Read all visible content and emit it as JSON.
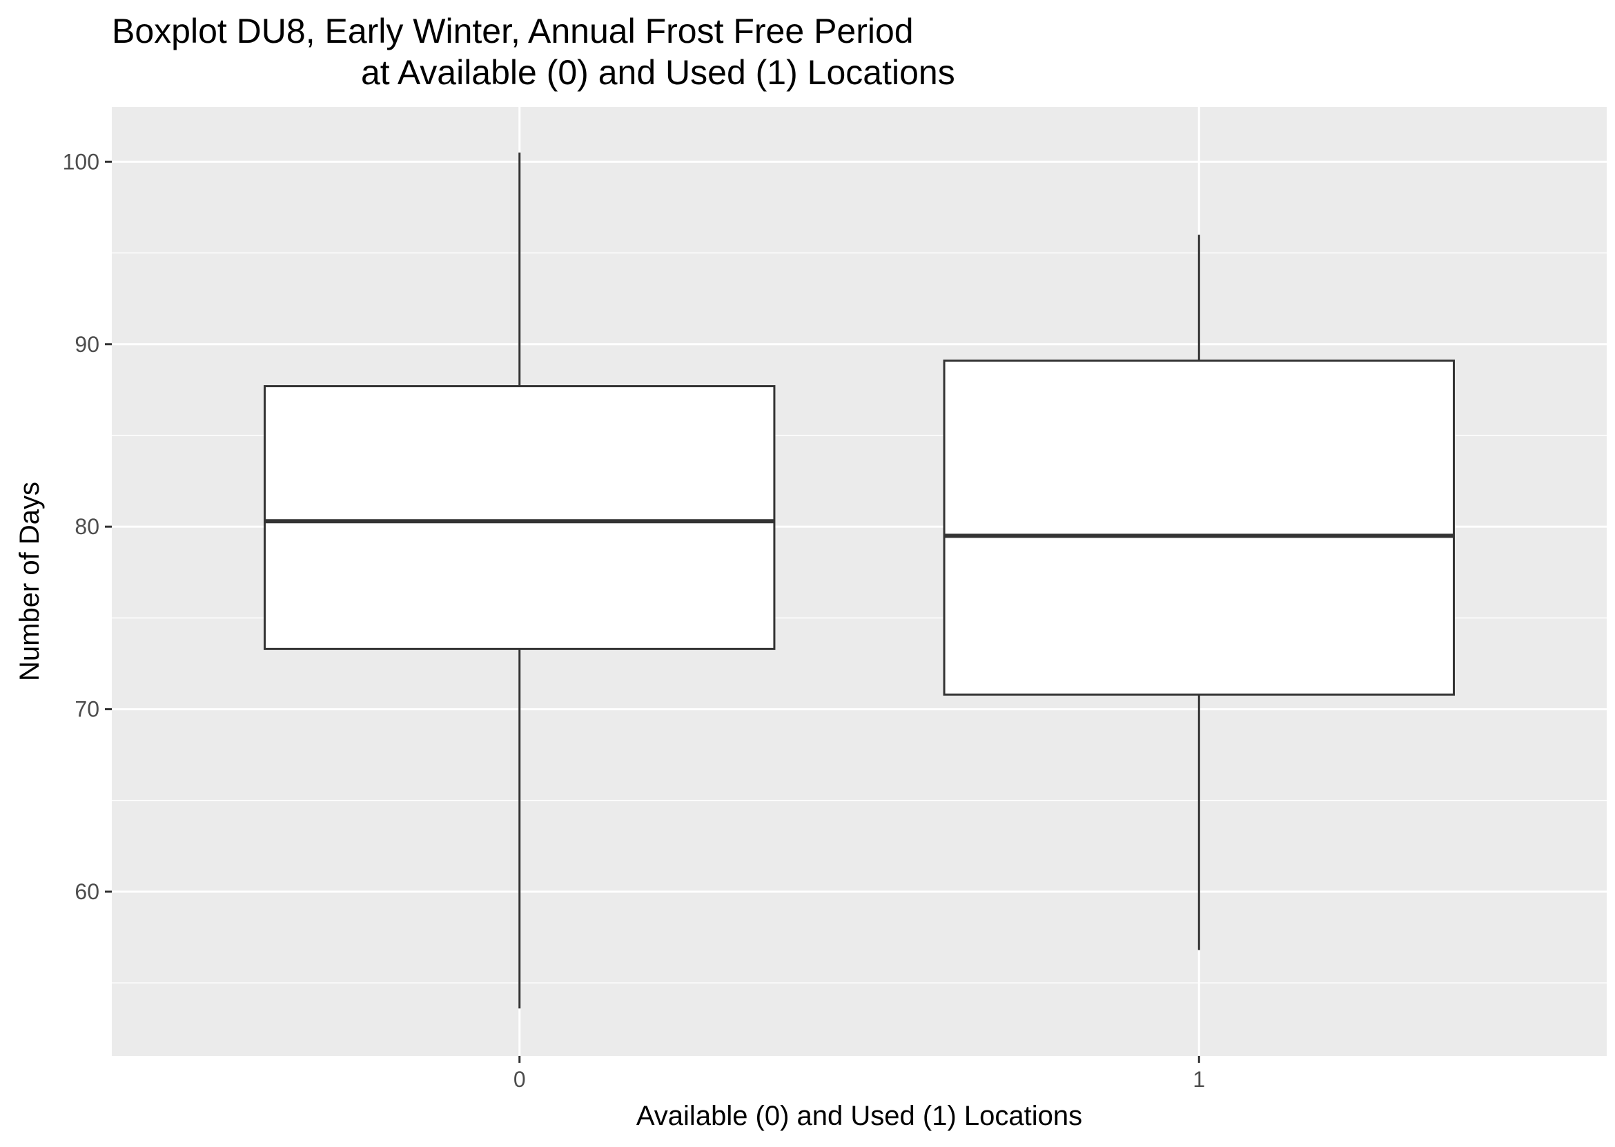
{
  "chart_data": {
    "type": "boxplot",
    "title": [
      "Boxplot DU8, Early Winter, Annual Frost Free Period",
      "at Available (0) and Used (1) Locations"
    ],
    "xlabel": "Available (0) and Used (1) Locations",
    "ylabel": "Number of Days",
    "ylim": [
      51,
      103
    ],
    "yticks": [
      60,
      70,
      80,
      90,
      100
    ],
    "categories": [
      "0",
      "1"
    ],
    "boxes": [
      {
        "category": "0",
        "min": 53.6,
        "q1": 73.3,
        "median": 80.3,
        "q3": 87.7,
        "max": 100.5
      },
      {
        "category": "1",
        "min": 56.8,
        "q1": 70.8,
        "median": 79.5,
        "q3": 89.1,
        "max": 96.0
      }
    ],
    "grid": true,
    "legend": "none"
  },
  "colors": {
    "panel_background": "#ebebeb",
    "grid": "#ffffff",
    "box_fill": "#ffffff",
    "box_stroke": "#333333",
    "tick_text": "#4d4d4d",
    "title_text": "#000000"
  }
}
